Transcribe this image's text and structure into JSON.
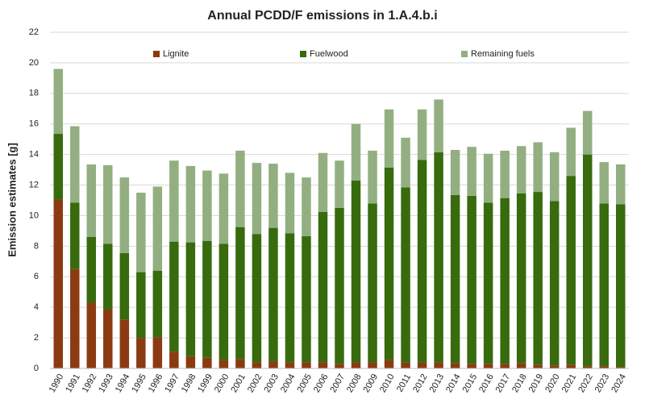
{
  "chart_data": {
    "type": "stacked_bar",
    "title": "Annual PCDD/F emissions in 1.A.4.b.i",
    "y_label": "Emission estimates [g]",
    "categories": [
      "1990",
      "1991",
      "1992",
      "1993",
      "1994",
      "1995",
      "1996",
      "1997",
      "1998",
      "1999",
      "2000",
      "2001",
      "2002",
      "2003",
      "2004",
      "2005",
      "2006",
      "2007",
      "2008",
      "2009",
      "2010",
      "2011",
      "2012",
      "2013",
      "2014",
      "2015",
      "2016",
      "2017",
      "2018",
      "2019",
      "2020",
      "2021",
      "2022",
      "2023",
      "2024"
    ],
    "series": [
      {
        "name": "Lignite",
        "color": "#8b3b12",
        "values": [
          11.05,
          6.5,
          4.3,
          3.85,
          3.2,
          2.0,
          2.05,
          1.1,
          0.8,
          0.7,
          0.55,
          0.6,
          0.4,
          0.45,
          0.4,
          0.4,
          0.4,
          0.3,
          0.4,
          0.4,
          0.55,
          0.4,
          0.4,
          0.4,
          0.35,
          0.3,
          0.3,
          0.3,
          0.35,
          0.25,
          0.2,
          0.25,
          0.15,
          0.15,
          0.1
        ]
      },
      {
        "name": "Fuelwood",
        "color": "#376b0e",
        "values": [
          4.3,
          4.35,
          4.3,
          4.3,
          4.35,
          4.3,
          4.35,
          7.2,
          7.45,
          7.65,
          7.6,
          8.65,
          8.4,
          8.75,
          8.45,
          8.25,
          9.85,
          10.2,
          11.9,
          10.4,
          12.6,
          11.45,
          13.25,
          13.75,
          11.0,
          11.0,
          10.55,
          10.85,
          11.1,
          11.3,
          10.75,
          12.35,
          13.85,
          10.65,
          10.65
        ]
      },
      {
        "name": "Remaining fuels",
        "color": "#93af81",
        "values": [
          4.25,
          5.0,
          4.75,
          5.15,
          4.95,
          5.2,
          5.5,
          5.3,
          5.0,
          4.6,
          4.6,
          5.0,
          4.65,
          4.2,
          3.95,
          3.85,
          3.85,
          3.1,
          3.7,
          3.45,
          3.8,
          3.25,
          3.3,
          3.45,
          2.95,
          3.2,
          3.2,
          3.1,
          3.1,
          3.25,
          3.2,
          3.15,
          2.85,
          2.7,
          2.6
        ]
      }
    ],
    "ylim": [
      0,
      22
    ],
    "yticks": [
      0,
      2,
      4,
      6,
      8,
      10,
      12,
      14,
      16,
      18,
      20,
      22
    ],
    "grid": true,
    "legend": "top"
  }
}
